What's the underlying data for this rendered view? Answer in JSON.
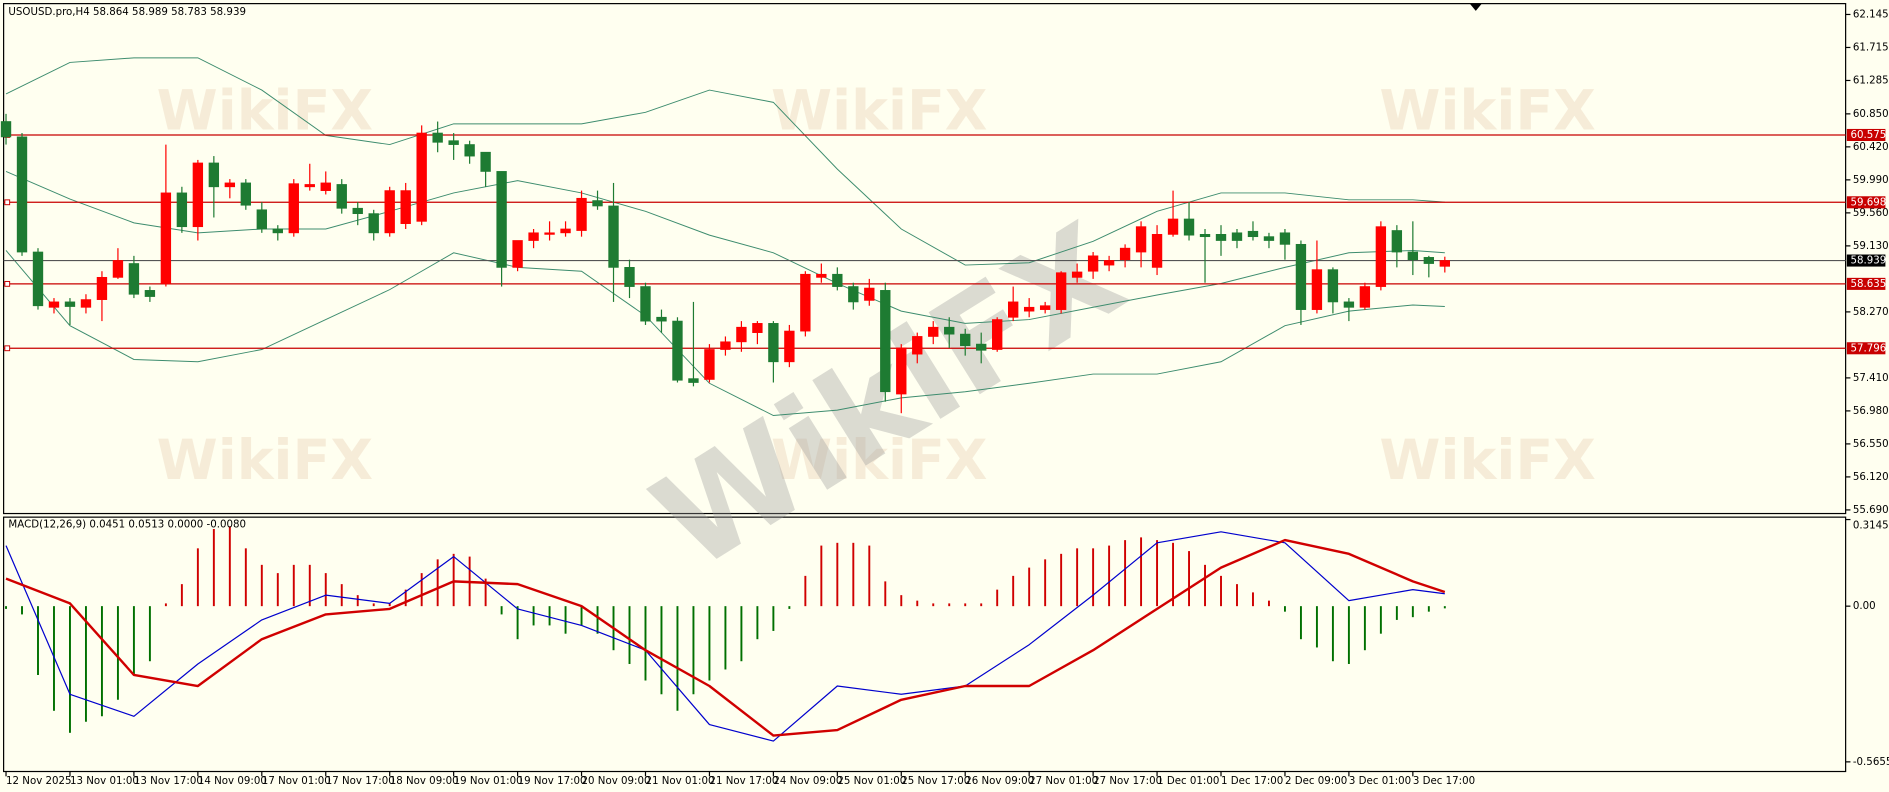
{
  "chart_data": [
    {
      "type": "candlestick",
      "title": "USOUSD.pro,H4  58.864 58.989 58.783 58.939",
      "watermark": "WikiFX",
      "categories": [
        "12 Nov 2025",
        null,
        null,
        null,
        "13 Nov 01:00",
        null,
        null,
        null,
        "13 Nov 17:00",
        null,
        null,
        null,
        "14 Nov 09:00",
        null,
        null,
        null,
        "17 Nov 01:00",
        null,
        null,
        null,
        "17 Nov 17:00",
        null,
        null,
        null,
        "18 Nov 09:00",
        null,
        null,
        null,
        "19 Nov 01:00",
        null,
        null,
        null,
        "19 Nov 17:00",
        null,
        null,
        null,
        "20 Nov 09:00",
        null,
        null,
        null,
        "21 Nov 01:00",
        null,
        null,
        null,
        "21 Nov 17:00",
        null,
        null,
        null,
        "24 Nov 09:00",
        null,
        null,
        null,
        "25 Nov 01:00",
        null,
        null,
        null,
        "25 Nov 17:00",
        null,
        null,
        null,
        "26 Nov 09:00",
        null,
        null,
        null,
        "27 Nov 01:00",
        null,
        null,
        null,
        "27 Nov 17:00",
        null,
        null,
        null,
        "1 Dec 01:00",
        null,
        null,
        null,
        "1 Dec 17:00",
        null,
        null,
        null,
        "2 Dec 09:00",
        null,
        null,
        null,
        "3 Dec 01:00",
        null,
        null,
        null,
        "3 Dec 17:00",
        null,
        null
      ],
      "open": [
        60.75,
        60.55,
        59.05,
        58.33,
        58.4,
        58.33,
        58.43,
        58.72,
        58.9,
        58.55,
        58.64,
        59.82,
        59.38,
        60.21,
        59.9,
        59.95,
        59.6,
        59.35,
        59.3,
        59.9,
        59.85,
        59.93,
        59.62,
        59.55,
        59.3,
        59.42,
        59.45,
        60.6,
        60.5,
        60.45,
        60.35,
        60.1,
        58.85,
        59.2,
        59.28,
        59.3,
        59.33,
        59.72,
        59.65,
        58.85,
        58.6,
        58.2,
        58.15,
        57.4,
        57.39,
        57.78,
        57.88,
        58.0,
        58.12,
        57.62,
        58.02,
        58.72,
        58.76,
        58.6,
        58.42,
        58.55,
        57.2,
        57.72,
        57.95,
        58.07,
        57.98,
        57.85,
        57.78,
        58.2,
        58.28,
        58.3,
        58.3,
        58.72,
        58.8,
        58.88,
        58.95,
        59.05,
        58.85,
        59.28,
        59.48,
        59.28,
        59.28,
        59.3,
        59.32,
        59.25,
        59.3,
        59.15,
        58.3,
        58.82,
        58.4,
        58.33,
        58.6,
        59.33,
        59.05,
        58.98,
        58.864
      ],
      "high": [
        60.85,
        60.6,
        59.1,
        58.45,
        58.45,
        58.5,
        58.8,
        59.1,
        59.0,
        58.6,
        60.45,
        59.9,
        60.25,
        60.3,
        60.0,
        60.0,
        59.7,
        59.4,
        60.0,
        60.2,
        60.1,
        60.0,
        59.7,
        59.6,
        59.9,
        59.95,
        60.7,
        60.75,
        60.6,
        60.5,
        60.35,
        60.1,
        59.2,
        59.35,
        59.45,
        59.45,
        59.85,
        59.85,
        59.95,
        58.95,
        58.65,
        58.3,
        58.2,
        58.4,
        57.85,
        57.95,
        58.15,
        58.15,
        58.15,
        58.1,
        58.8,
        58.9,
        58.85,
        58.65,
        58.7,
        58.65,
        57.85,
        58.0,
        58.15,
        58.2,
        58.05,
        58.0,
        58.2,
        58.6,
        58.45,
        58.4,
        58.8,
        58.9,
        59.05,
        59.0,
        59.15,
        59.45,
        59.4,
        59.85,
        59.7,
        59.35,
        59.4,
        59.35,
        59.45,
        59.3,
        59.35,
        59.2,
        59.2,
        58.85,
        58.45,
        58.65,
        59.45,
        59.4,
        59.45,
        59.0,
        58.989
      ],
      "low": [
        60.45,
        59.0,
        58.3,
        58.25,
        58.1,
        58.25,
        58.15,
        58.7,
        58.45,
        58.4,
        58.6,
        59.3,
        59.2,
        59.5,
        59.75,
        59.6,
        59.3,
        59.2,
        59.25,
        59.85,
        59.8,
        59.55,
        59.4,
        59.2,
        59.25,
        59.35,
        59.4,
        60.35,
        60.25,
        60.2,
        59.9,
        58.6,
        58.8,
        59.1,
        59.2,
        59.25,
        59.25,
        59.6,
        58.4,
        58.45,
        58.1,
        58.0,
        57.35,
        57.3,
        57.35,
        57.7,
        57.75,
        57.85,
        57.35,
        57.55,
        57.95,
        58.65,
        58.55,
        58.3,
        58.35,
        57.1,
        56.95,
        57.6,
        57.85,
        57.8,
        57.7,
        57.6,
        57.75,
        58.15,
        58.2,
        58.25,
        58.25,
        58.65,
        58.7,
        58.8,
        58.85,
        58.85,
        58.75,
        59.25,
        59.2,
        58.65,
        59.0,
        59.1,
        59.2,
        59.1,
        58.95,
        58.1,
        58.25,
        58.25,
        58.15,
        58.3,
        58.55,
        58.85,
        58.75,
        58.72,
        58.783
      ],
      "close": [
        60.55,
        59.05,
        58.35,
        58.4,
        58.34,
        58.43,
        58.72,
        58.94,
        58.5,
        58.47,
        59.82,
        59.38,
        60.21,
        59.9,
        59.95,
        59.66,
        59.35,
        59.3,
        59.94,
        59.93,
        59.95,
        59.62,
        59.55,
        59.3,
        59.85,
        59.85,
        60.6,
        60.48,
        60.45,
        60.3,
        60.1,
        58.85,
        59.2,
        59.3,
        59.3,
        59.35,
        59.75,
        59.65,
        58.85,
        58.6,
        58.15,
        58.15,
        57.38,
        57.35,
        57.78,
        57.88,
        58.07,
        58.12,
        57.62,
        58.02,
        58.76,
        58.76,
        58.6,
        58.4,
        58.58,
        57.23,
        57.8,
        57.95,
        58.07,
        57.98,
        57.83,
        57.77,
        58.17,
        58.4,
        58.33,
        58.35,
        58.78,
        58.79,
        59.0,
        58.94,
        59.1,
        59.38,
        59.28,
        59.48,
        59.27,
        59.25,
        59.2,
        59.2,
        59.25,
        59.2,
        59.15,
        58.3,
        58.82,
        58.4,
        58.33,
        58.6,
        59.38,
        59.05,
        58.95,
        58.9,
        58.939
      ],
      "up_color": "#ff0000",
      "down_color": "#1e7b32",
      "bands_x": [
        0,
        4,
        8,
        12,
        16,
        20,
        24,
        28,
        32,
        36,
        40,
        44,
        48,
        52,
        56,
        60,
        64,
        68,
        72,
        76,
        80,
        84,
        88,
        90
      ],
      "bands": [
        {
          "color": "#3d8c6e",
          "values": [
            61.11,
            61.52,
            61.58,
            61.58,
            61.16,
            60.57,
            60.45,
            60.72,
            60.72,
            60.72,
            60.87,
            61.16,
            61.0,
            60.13,
            59.35,
            58.88,
            58.91,
            59.19,
            59.58,
            59.82,
            59.82,
            59.73,
            59.73,
            59.7
          ]
        },
        {
          "color": "#3d8c6e",
          "values": [
            60.1,
            59.74,
            59.43,
            59.3,
            59.35,
            59.35,
            59.58,
            59.82,
            59.98,
            59.82,
            59.58,
            59.27,
            59.04,
            58.64,
            58.28,
            58.12,
            58.17,
            58.33,
            58.49,
            58.64,
            58.85,
            59.04,
            59.07,
            59.04
          ]
        },
        {
          "color": "#3d8c6e",
          "values": [
            59.07,
            58.09,
            57.65,
            57.62,
            57.78,
            58.17,
            58.56,
            59.04,
            58.85,
            58.8,
            58.22,
            57.34,
            56.92,
            56.99,
            57.15,
            57.23,
            57.34,
            57.46,
            57.46,
            57.62,
            58.09,
            58.28,
            58.36,
            58.34
          ]
        }
      ],
      "hlines": [
        60.575,
        59.698,
        58.635,
        57.796
      ],
      "hline_color": "#c80000",
      "current_price": 58.939,
      "ylim": [
        55.69,
        62.145
      ],
      "yticks": [
        62.145,
        61.715,
        61.285,
        {
          "value": 60.85,
          "label": "60.850"
        },
        {
          "value": 60.42,
          "label": "60.420"
        },
        {
          "value": 59.99,
          "label": "59.990"
        },
        {
          "value": 59.56,
          "label": "59.560"
        },
        {
          "value": 59.13,
          "label": "59.130"
        },
        {
          "value": 58.27,
          "label": "58.270"
        },
        {
          "value": 57.41,
          "label": "57.410"
        },
        {
          "value": 56.98,
          "label": "56.980"
        },
        {
          "value": 56.55,
          "label": "56.550"
        },
        {
          "value": 56.12,
          "label": "56.120"
        },
        {
          "value": 55.69,
          "label": "55.690"
        }
      ]
    },
    {
      "type": "macd",
      "title": "MACD(12,26,9) 0.0451 0.0513 0.0000 -0.0080",
      "histogram": [
        -0.01,
        -0.03,
        -0.25,
        -0.38,
        -0.46,
        -0.42,
        -0.4,
        -0.34,
        -0.25,
        -0.2,
        0.01,
        0.08,
        0.21,
        0.28,
        0.29,
        0.21,
        0.15,
        0.12,
        0.15,
        0.15,
        0.12,
        0.08,
        0.04,
        0.01,
        0.01,
        0.06,
        0.12,
        0.17,
        0.19,
        0.18,
        0.1,
        -0.03,
        -0.12,
        -0.07,
        -0.07,
        -0.1,
        -0.07,
        -0.1,
        -0.16,
        -0.21,
        -0.27,
        -0.32,
        -0.38,
        -0.32,
        -0.27,
        -0.23,
        -0.2,
        -0.12,
        -0.09,
        -0.01,
        0.11,
        0.22,
        0.23,
        0.23,
        0.22,
        0.09,
        0.04,
        0.02,
        0.01,
        0.01,
        0.01,
        0.01,
        0.06,
        0.11,
        0.14,
        0.17,
        0.19,
        0.21,
        0.21,
        0.22,
        0.24,
        0.25,
        0.24,
        0.23,
        0.2,
        0.15,
        0.11,
        0.08,
        0.05,
        0.02,
        -0.02,
        -0.12,
        -0.15,
        -0.2,
        -0.21,
        -0.16,
        -0.1,
        -0.05,
        -0.04,
        -0.02,
        -0.008
      ],
      "pos_color": "#d00000",
      "neg_color": "#007000",
      "x": [
        0,
        4,
        8,
        12,
        16,
        20,
        24,
        28,
        32,
        36,
        40,
        44,
        48,
        52,
        56,
        60,
        64,
        68,
        72,
        76,
        80,
        84,
        88,
        90
      ],
      "series": [
        {
          "color": "#0000cd",
          "width": 1,
          "values": [
            0.22,
            -0.32,
            -0.4,
            -0.21,
            -0.05,
            0.04,
            0.01,
            0.18,
            -0.01,
            -0.07,
            -0.16,
            -0.43,
            -0.49,
            -0.29,
            -0.32,
            -0.29,
            -0.14,
            0.04,
            0.23,
            0.27,
            0.23,
            0.02,
            0.06,
            0.0451
          ]
        },
        {
          "color": "#d00000",
          "width": 2,
          "values": [
            0.1,
            0.01,
            -0.25,
            -0.29,
            -0.12,
            -0.03,
            -0.01,
            0.09,
            0.08,
            0,
            -0.16,
            -0.29,
            -0.47,
            -0.45,
            -0.34,
            -0.29,
            -0.29,
            -0.16,
            -0.01,
            0.14,
            0.24,
            0.19,
            0.09,
            0.0513
          ]
        }
      ],
      "ylim": [
        -0.5655,
        0.3145
      ],
      "yticks": [
        0.3145,
        {
          "value": 0,
          "label": "0.00"
        },
        -0.5655
      ]
    }
  ]
}
